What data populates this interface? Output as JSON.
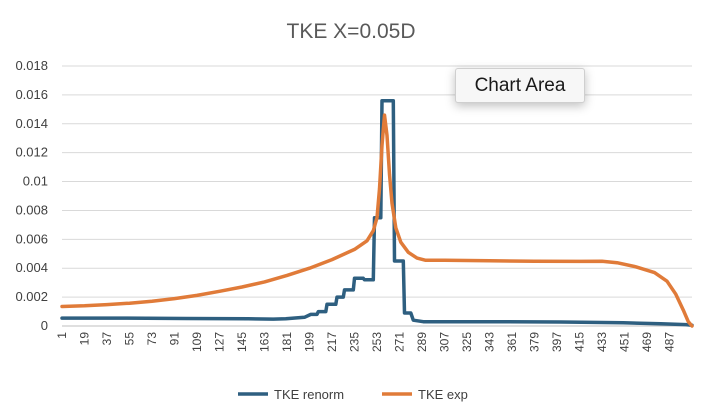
{
  "tooltip": {
    "text": "Chart Area"
  },
  "colors": {
    "tke_renorm": "#2e5f80",
    "tke_exp": "#e07b39",
    "grid": "#d9d9d9",
    "axis": "#bfbfbf"
  },
  "chart_data": {
    "type": "line",
    "title": "TKE X=0.05D",
    "xlabel": "",
    "ylabel": "",
    "xlim": [
      1,
      505
    ],
    "ylim": [
      0,
      0.018
    ],
    "yticks": [
      0,
      0.002,
      0.004,
      0.006,
      0.008,
      0.01,
      0.012,
      0.014,
      0.016,
      0.018
    ],
    "ytick_labels": [
      "0",
      "0.002",
      "0.004",
      "0.006",
      "0.008",
      "0.01",
      "0.012",
      "0.014",
      "0.016",
      "0.018"
    ],
    "xticks": [
      1,
      19,
      37,
      55,
      73,
      91,
      109,
      127,
      145,
      163,
      181,
      199,
      217,
      235,
      253,
      271,
      289,
      307,
      325,
      343,
      361,
      379,
      397,
      415,
      433,
      451,
      469,
      487
    ],
    "grid": true,
    "legend_position": "bottom",
    "series": [
      {
        "name": "TKE renorm",
        "color": "#2e5f80",
        "points": [
          [
            1,
            0.00055
          ],
          [
            50,
            0.00055
          ],
          [
            100,
            0.00052
          ],
          [
            150,
            0.0005
          ],
          [
            170,
            0.00048
          ],
          [
            180,
            0.0005
          ],
          [
            195,
            0.0006
          ],
          [
            200,
            0.0008
          ],
          [
            205,
            0.0008
          ],
          [
            206,
            0.001
          ],
          [
            212,
            0.001
          ],
          [
            213,
            0.0015
          ],
          [
            220,
            0.0015
          ],
          [
            221,
            0.002
          ],
          [
            226,
            0.002
          ],
          [
            227,
            0.0025
          ],
          [
            234,
            0.0025
          ],
          [
            235,
            0.0033
          ],
          [
            242,
            0.0033
          ],
          [
            243,
            0.0032
          ],
          [
            250,
            0.0032
          ],
          [
            251,
            0.0075
          ],
          [
            256,
            0.0075
          ],
          [
            257,
            0.0156
          ],
          [
            266,
            0.0156
          ],
          [
            267,
            0.0045
          ],
          [
            274,
            0.0045
          ],
          [
            275,
            0.0009
          ],
          [
            280,
            0.0009
          ],
          [
            282,
            0.0004
          ],
          [
            290,
            0.0003
          ],
          [
            350,
            0.0003
          ],
          [
            400,
            0.00028
          ],
          [
            450,
            0.00022
          ],
          [
            480,
            0.00015
          ],
          [
            500,
            0.0001
          ],
          [
            505,
            5e-05
          ]
        ]
      },
      {
        "name": "TKE exp",
        "color": "#e07b39",
        "points": [
          [
            1,
            0.00135
          ],
          [
            19,
            0.0014
          ],
          [
            37,
            0.00148
          ],
          [
            55,
            0.00158
          ],
          [
            73,
            0.00172
          ],
          [
            91,
            0.0019
          ],
          [
            109,
            0.00212
          ],
          [
            127,
            0.0024
          ],
          [
            145,
            0.0027
          ],
          [
            163,
            0.00305
          ],
          [
            181,
            0.0035
          ],
          [
            199,
            0.004
          ],
          [
            217,
            0.0046
          ],
          [
            235,
            0.0053
          ],
          [
            245,
            0.0059
          ],
          [
            250,
            0.0066
          ],
          [
            253,
            0.0075
          ],
          [
            255,
            0.0095
          ],
          [
            257,
            0.0125
          ],
          [
            259,
            0.0146
          ],
          [
            261,
            0.0132
          ],
          [
            263,
            0.0105
          ],
          [
            265,
            0.0085
          ],
          [
            268,
            0.0068
          ],
          [
            272,
            0.0058
          ],
          [
            278,
            0.0051
          ],
          [
            285,
            0.0047
          ],
          [
            292,
            0.00455
          ],
          [
            307,
            0.00455
          ],
          [
            343,
            0.00452
          ],
          [
            379,
            0.00448
          ],
          [
            415,
            0.00447
          ],
          [
            433,
            0.00448
          ],
          [
            445,
            0.00438
          ],
          [
            460,
            0.0041
          ],
          [
            475,
            0.0037
          ],
          [
            485,
            0.0031
          ],
          [
            492,
            0.0022
          ],
          [
            498,
            0.0011
          ],
          [
            502,
            0.0003
          ],
          [
            505,
            0.0
          ]
        ]
      }
    ]
  }
}
